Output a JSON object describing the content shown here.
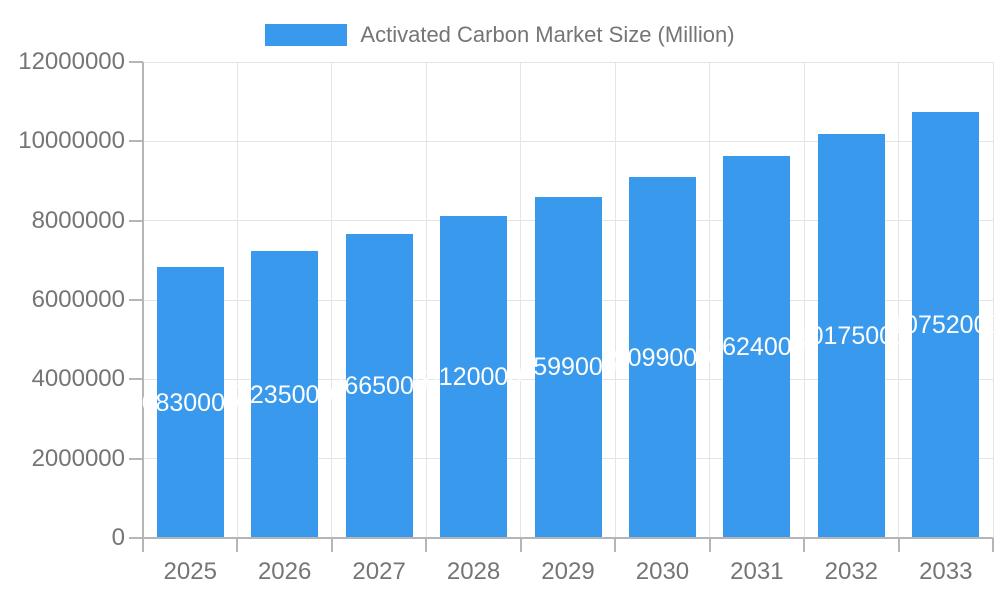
{
  "legend": {
    "label": "Activated Carbon Market Size (Million)"
  },
  "chart_data": {
    "type": "bar",
    "title": "Activated Carbon Market Size (Million)",
    "xlabel": "",
    "ylabel": "",
    "categories": [
      "2025",
      "2026",
      "2027",
      "2028",
      "2029",
      "2030",
      "2031",
      "2032",
      "2033"
    ],
    "values": [
      6830000,
      7235000,
      7665000,
      8120000,
      8599000,
      9099000,
      9624000,
      10175000,
      10752000
    ],
    "bar_labels": [
      "6830000",
      "7235000",
      "7665000",
      "8120000",
      "8599000",
      "9099000",
      "9624000",
      "10175000",
      "10752000"
    ],
    "ylim": [
      0,
      12000000
    ],
    "yticks": [
      0,
      2000000,
      4000000,
      6000000,
      8000000,
      10000000,
      12000000
    ],
    "ytick_labels": [
      "0",
      "2000000",
      "4000000",
      "6000000",
      "8000000",
      "10000000",
      "12000000"
    ],
    "grid": true,
    "legend_position": "top",
    "colors": {
      "bar": "#3999ec",
      "grid": "#e4e4e4",
      "axis": "#b5b5b5",
      "text": "#757575",
      "bar_label": "#ffffff",
      "background": "#ffffff"
    }
  }
}
